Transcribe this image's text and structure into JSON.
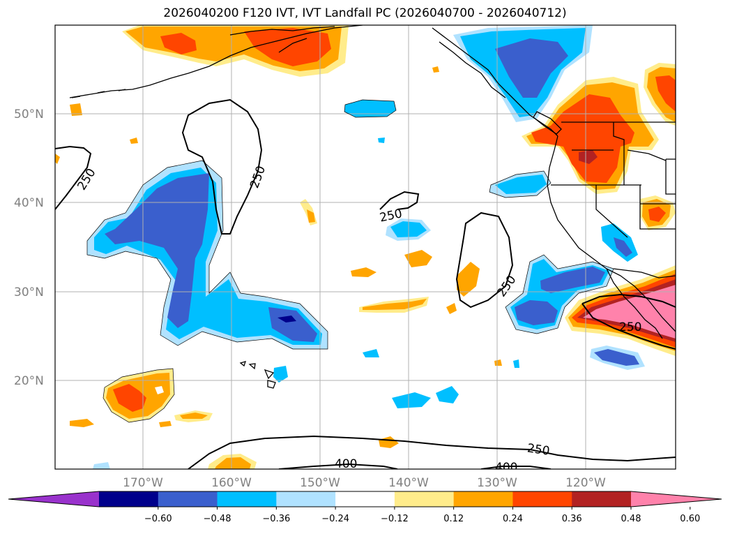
{
  "title": "2026040200 F120 IVT, IVT Landfall PC (2026040700 - 2026040712)",
  "lat_labels": [
    "50°N",
    "40°N",
    "30°N",
    "20°N"
  ],
  "lon_labels": [
    "170°W",
    "160°W",
    "150°W",
    "140°W",
    "130°W",
    "120°W"
  ],
  "contour_labels": [
    "250",
    "250",
    "250",
    "250",
    "250",
    "400",
    "400"
  ],
  "colorbar": {
    "colors": [
      "#9932cc",
      "#00008b",
      "#3a5fcd",
      "#00bfff",
      "#b0e2ff",
      "#ffffff",
      "#ffec8b",
      "#ffa500",
      "#ff4500",
      "#b22222",
      "#ff82ab"
    ],
    "tick_labels": [
      "−0.60",
      "−0.48",
      "−0.36",
      "−0.24",
      "−0.12",
      "0.12",
      "0.24",
      "0.36",
      "0.48",
      "0.60"
    ]
  },
  "palette": {
    "neg_light": "#b0e2ff",
    "neg_mid": "#00bfff",
    "neg_dark": "#3a5fcd",
    "neg_deep": "#00008b",
    "pos_light": "#ffec8b",
    "pos_mid": "#ffa500",
    "pos_dark": "#ff4500",
    "pos_deep": "#b22222",
    "pos_max": "#ff82ab"
  }
}
